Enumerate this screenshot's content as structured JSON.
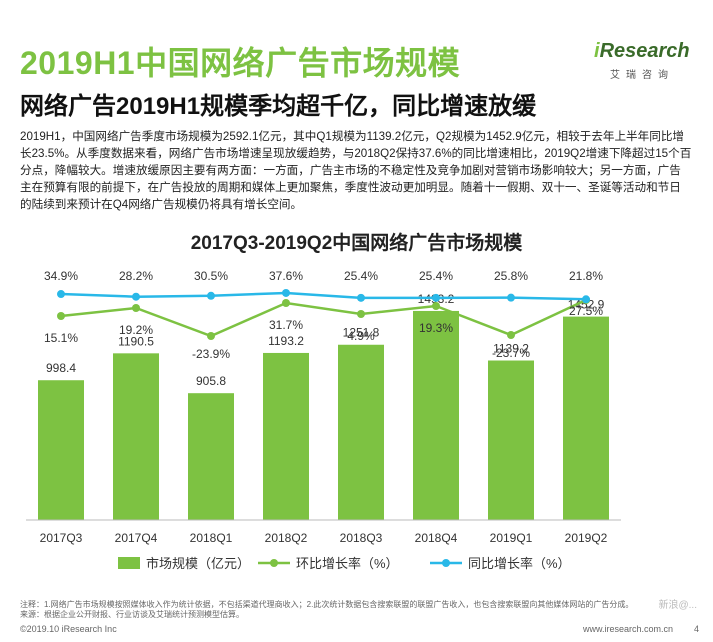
{
  "header": {
    "title": "2019H1中国网络广告市场规模",
    "subtitle": "网络广告2019H1规模季均超千亿，同比增速放缓",
    "logo_brand_i": "i",
    "logo_brand_rest": "Research",
    "logo_sub": "艾瑞咨询"
  },
  "body_text": "2019H1，中国网络广告季度市场规模为2592.1亿元，其中Q1规模为1139.2亿元，Q2规模为1452.9亿元，相较于去年上半年同比增长23.5%。从季度数据来看，网络广告市场增速呈现放缓趋势，与2018Q2保持37.6%的同比增速相比，2019Q2增速下降超过15个百分点，降幅较大。增速放缓原因主要有两方面：一方面，广告主市场的不稳定性及竞争加剧对营销市场影响较大；另一方面，广告主在预算有限的前提下，在广告投放的周期和媒体上更加聚焦，季度性波动更加明显。随着十一假期、双十一、圣诞等活动和节日的陆续到来预计在Q4网络广告规模仍将具有增长空间。",
  "chart_data": {
    "type": "bar",
    "title": "2017Q3-2019Q2中国网络广告市场规模",
    "categories": [
      "2017Q3",
      "2017Q4",
      "2018Q1",
      "2018Q2",
      "2018Q3",
      "2018Q4",
      "2019Q1",
      "2019Q2"
    ],
    "series": [
      {
        "name": "市场规模（亿元）",
        "type": "bar",
        "color": "#7dc242",
        "values": [
          998.4,
          1190.5,
          905.8,
          1193.2,
          1251.8,
          1493.2,
          1139.2,
          1452.9
        ],
        "labels": [
          "998.4",
          "1190.5",
          "905.8",
          "1193.2",
          "1251.8",
          "1493.2",
          "1139.2",
          "1452.9"
        ]
      },
      {
        "name": "环比增长率（%）",
        "type": "line",
        "color": "#7dc242",
        "values": [
          15.1,
          19.2,
          -23.9,
          31.7,
          4.9,
          19.3,
          -23.7,
          27.5
        ],
        "labels": [
          "15.1%",
          "19.2%",
          "-23.9%",
          "31.7%",
          "4.9%",
          "19.3%",
          "-23.7%",
          "27.5%"
        ]
      },
      {
        "name": "同比增长率（%）",
        "type": "line",
        "color": "#29b8e8",
        "values": [
          34.9,
          28.2,
          30.5,
          37.6,
          25.4,
          25.4,
          25.8,
          21.8
        ],
        "labels": [
          "34.9%",
          "28.2%",
          "30.5%",
          "37.6%",
          "25.4%",
          "25.4%",
          "25.8%",
          "21.8%"
        ]
      }
    ],
    "legend_position": "bottom",
    "grid": false
  },
  "footer": {
    "note": "注释：1.网络广告市场规模按照媒体收入作为统计依据，不包括渠道代理商收入；2.此次统计数据包含搜索联盟的联盟广告收入，也包含搜索联盟向其他媒体网站的广告分成。\n来源：根据企业公开财报、行业访谈及艾瑞统计预测模型估算。",
    "copyright": "©2019.10 iResearch Inc",
    "website": "www.iresearch.com.cn",
    "page": "4",
    "watermark": "新浪@..."
  }
}
